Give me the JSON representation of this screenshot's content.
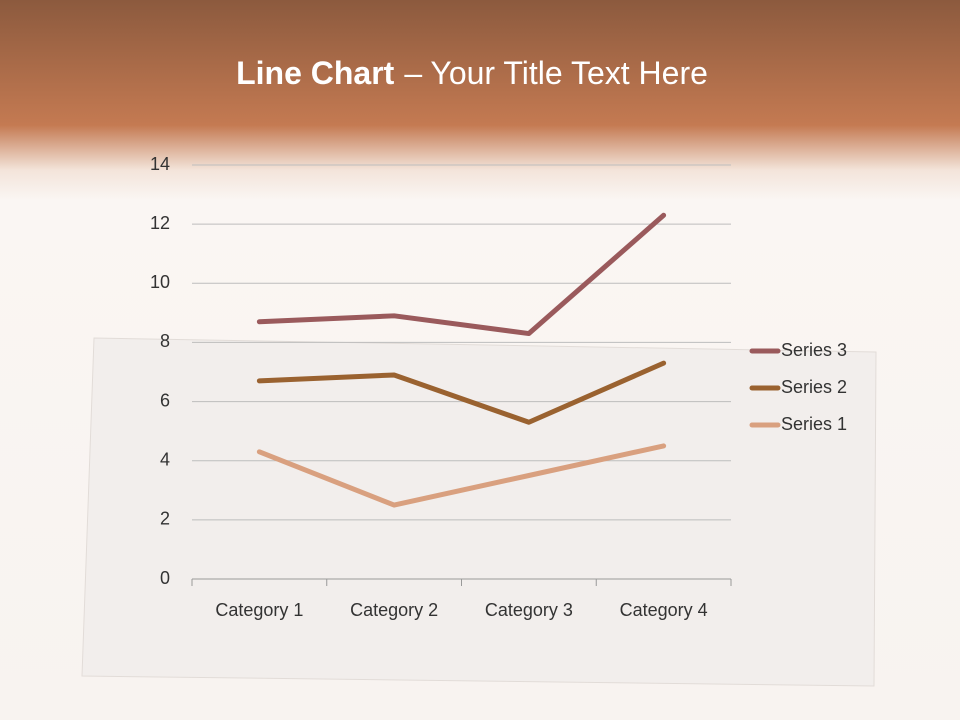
{
  "chart_data": {
    "type": "line",
    "stacked": true,
    "title": "Line Chart",
    "subtitle": "– Your Title Text Here",
    "categories": [
      "Category 1",
      "Category 2",
      "Category 3",
      "Category 4"
    ],
    "series": [
      {
        "name": "Series 1",
        "color": "#d9a07f",
        "values": [
          4.3,
          2.5,
          3.5,
          4.5
        ]
      },
      {
        "name": "Series 2",
        "color": "#9a6230",
        "values": [
          2.4,
          4.4,
          1.8,
          2.8
        ]
      },
      {
        "name": "Series 3",
        "color": "#9a5a5c",
        "values": [
          2,
          2,
          3,
          5
        ]
      }
    ],
    "ylim": [
      0,
      14
    ],
    "yticks": [
      0,
      2,
      4,
      6,
      8,
      10,
      12,
      14
    ],
    "grid": true,
    "legend": "right"
  }
}
